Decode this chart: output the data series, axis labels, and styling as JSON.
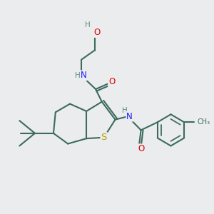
{
  "bg_color": "#eaecee",
  "atom_colors": {
    "C": "#3d6b5e",
    "N": "#1a1aff",
    "O": "#dd0000",
    "S": "#b8a000",
    "H": "#5a8a7a"
  },
  "bond_color": "#3d6b5e",
  "bond_width": 1.5,
  "font_size_atom": 8.5,
  "fig_size": [
    3.0,
    3.0
  ],
  "dpi": 100
}
